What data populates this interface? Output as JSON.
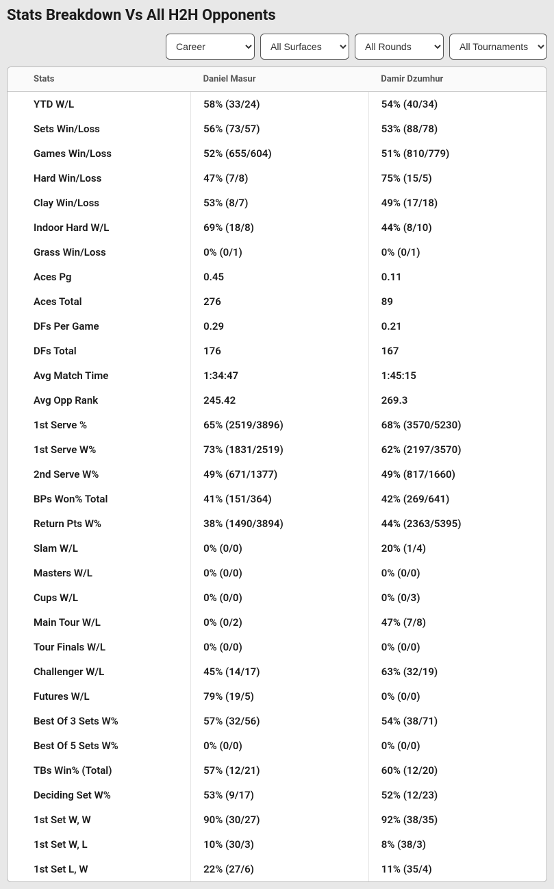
{
  "title": "Stats Breakdown Vs All H2H Opponents",
  "filters": {
    "period": "Career",
    "surface": "All Surfaces",
    "round": "All Rounds",
    "tournaments": "All Tournaments"
  },
  "columns": {
    "stats": "Stats",
    "player1": "Daniel Masur",
    "player2": "Damir Dzumhur"
  },
  "rows": [
    {
      "label": "YTD W/L",
      "p1": "58% (33/24)",
      "p2": "54% (40/34)"
    },
    {
      "label": "Sets Win/Loss",
      "p1": "56% (73/57)",
      "p2": "53% (88/78)"
    },
    {
      "label": "Games Win/Loss",
      "p1": "52% (655/604)",
      "p2": "51% (810/779)"
    },
    {
      "label": "Hard Win/Loss",
      "p1": "47% (7/8)",
      "p2": "75% (15/5)"
    },
    {
      "label": "Clay Win/Loss",
      "p1": "53% (8/7)",
      "p2": "49% (17/18)"
    },
    {
      "label": "Indoor Hard W/L",
      "p1": "69% (18/8)",
      "p2": "44% (8/10)"
    },
    {
      "label": "Grass Win/Loss",
      "p1": "0% (0/1)",
      "p2": "0% (0/1)"
    },
    {
      "label": "Aces Pg",
      "p1": "0.45",
      "p2": "0.11"
    },
    {
      "label": "Aces Total",
      "p1": "276",
      "p2": "89"
    },
    {
      "label": "DFs Per Game",
      "p1": "0.29",
      "p2": "0.21"
    },
    {
      "label": "DFs Total",
      "p1": "176",
      "p2": "167"
    },
    {
      "label": "Avg Match Time",
      "p1": "1:34:47",
      "p2": "1:45:15"
    },
    {
      "label": "Avg Opp Rank",
      "p1": "245.42",
      "p2": "269.3"
    },
    {
      "label": "1st Serve %",
      "p1": "65% (2519/3896)",
      "p2": "68% (3570/5230)"
    },
    {
      "label": "1st Serve W%",
      "p1": "73% (1831/2519)",
      "p2": "62% (2197/3570)"
    },
    {
      "label": "2nd Serve W%",
      "p1": "49% (671/1377)",
      "p2": "49% (817/1660)"
    },
    {
      "label": "BPs Won% Total",
      "p1": "41% (151/364)",
      "p2": "42% (269/641)"
    },
    {
      "label": "Return Pts W%",
      "p1": "38% (1490/3894)",
      "p2": "44% (2363/5395)"
    },
    {
      "label": "Slam W/L",
      "p1": "0% (0/0)",
      "p2": "20% (1/4)"
    },
    {
      "label": "Masters W/L",
      "p1": "0% (0/0)",
      "p2": "0% (0/0)"
    },
    {
      "label": "Cups W/L",
      "p1": "0% (0/0)",
      "p2": "0% (0/3)"
    },
    {
      "label": "Main Tour W/L",
      "p1": "0% (0/2)",
      "p2": "47% (7/8)"
    },
    {
      "label": "Tour Finals W/L",
      "p1": "0% (0/0)",
      "p2": "0% (0/0)"
    },
    {
      "label": "Challenger W/L",
      "p1": "45% (14/17)",
      "p2": "63% (32/19)"
    },
    {
      "label": "Futures W/L",
      "p1": "79% (19/5)",
      "p2": "0% (0/0)"
    },
    {
      "label": "Best Of 3 Sets W%",
      "p1": "57% (32/56)",
      "p2": "54% (38/71)"
    },
    {
      "label": "Best Of 5 Sets W%",
      "p1": "0% (0/0)",
      "p2": "0% (0/0)"
    },
    {
      "label": "TBs Win% (Total)",
      "p1": "57% (12/21)",
      "p2": "60% (12/20)"
    },
    {
      "label": "Deciding Set W%",
      "p1": "53% (9/17)",
      "p2": "52% (12/23)"
    },
    {
      "label": "1st Set W, W",
      "p1": "90% (30/27)",
      "p2": "92% (38/35)"
    },
    {
      "label": "1st Set W, L",
      "p1": "10% (30/3)",
      "p2": "8% (38/3)"
    },
    {
      "label": "1st Set L, W",
      "p1": "22% (27/6)",
      "p2": "11% (35/4)"
    }
  ]
}
